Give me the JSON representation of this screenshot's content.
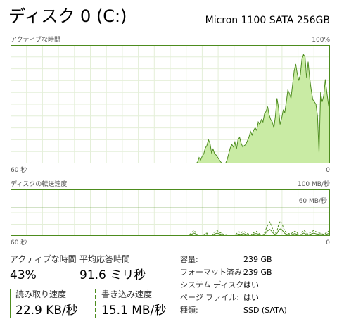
{
  "header": {
    "title": "ディスク 0 (C:)",
    "model": "Micron 1100 SATA 256GB"
  },
  "active_time_graph": {
    "label": "アクティブな時間",
    "max_label": "100%",
    "time_label": "60 秒",
    "min_label": "0",
    "values": [
      0,
      0,
      0,
      0,
      0,
      0,
      0,
      0,
      0,
      0,
      0,
      0,
      0,
      0,
      0,
      0,
      0,
      0,
      0,
      0,
      0,
      0,
      0,
      0,
      0,
      0,
      0,
      0,
      0,
      0,
      0,
      0,
      0,
      0,
      0,
      0,
      0,
      0,
      0,
      0,
      0,
      0,
      0,
      0,
      0,
      0,
      0,
      0,
      0,
      0,
      0,
      0,
      0,
      0,
      0,
      0,
      0,
      0,
      0,
      0,
      0,
      0,
      0,
      0,
      0,
      0,
      0,
      0,
      0,
      0,
      0,
      0,
      0,
      0,
      0,
      0,
      0,
      0,
      0,
      0,
      0,
      0,
      0,
      0,
      0,
      0,
      0,
      0,
      0,
      0,
      0,
      0,
      0,
      0,
      0,
      0,
      0,
      0,
      0,
      0,
      0,
      0,
      0,
      0,
      0,
      0,
      0,
      0,
      0,
      0,
      0,
      0,
      0,
      0,
      0,
      0,
      0,
      0,
      0,
      0,
      1,
      5,
      3,
      6,
      8,
      13,
      15,
      20,
      17,
      9,
      12,
      8,
      7,
      5,
      3,
      1,
      0,
      0,
      0,
      3,
      8,
      13,
      16,
      14,
      18,
      12,
      20,
      22,
      17,
      14,
      15,
      16,
      19,
      22,
      27,
      24,
      28,
      30,
      28,
      35,
      33,
      37,
      35,
      42,
      44,
      48,
      41,
      37,
      35,
      30,
      40,
      55,
      47,
      33,
      38,
      45,
      43,
      52,
      62,
      59,
      55,
      66,
      78,
      84,
      76,
      70,
      75,
      88,
      92,
      90,
      72,
      86,
      72,
      62,
      54,
      52,
      50,
      40,
      9,
      60,
      52,
      57,
      71,
      60,
      50,
      43
    ]
  },
  "transfer_graph": {
    "label": "ディスクの転送速度",
    "max_label": "100 MB/秒",
    "ref_label": "60 MB/秒",
    "ref_value": 60,
    "max_value": 100,
    "time_label": "60 秒",
    "min_label": "0",
    "read_values": [
      0,
      0,
      0,
      0,
      0,
      0,
      0,
      0,
      0,
      0,
      0,
      0,
      0,
      0,
      0,
      0,
      0,
      0,
      0,
      0,
      0,
      0,
      0,
      0,
      0,
      0,
      0,
      0,
      0,
      0,
      0,
      0,
      0,
      0,
      0,
      0,
      0,
      0,
      0,
      0,
      0,
      0,
      0,
      0,
      0,
      0,
      0,
      0,
      0,
      0,
      0,
      0,
      0,
      0,
      0,
      0,
      0,
      0,
      0,
      0,
      0,
      0,
      0,
      0,
      0,
      0,
      0,
      0,
      0,
      0,
      0,
      0,
      0,
      0,
      0,
      0,
      0,
      0,
      0,
      0,
      0,
      0,
      0,
      0,
      0,
      0,
      0,
      0,
      0,
      0,
      0,
      0,
      0,
      0,
      0,
      0,
      0,
      0,
      0,
      0,
      0,
      0,
      0,
      0,
      0,
      0,
      0,
      0,
      0,
      0,
      0,
      0,
      0,
      0,
      0,
      0,
      0,
      0,
      0,
      0,
      0,
      2,
      3,
      5,
      8,
      12,
      9,
      4,
      2,
      1,
      0,
      0,
      3,
      5,
      6,
      2,
      1,
      0,
      4,
      8,
      10,
      12,
      9,
      7,
      6,
      4,
      2,
      3,
      2,
      1,
      0,
      0,
      1,
      2,
      4,
      7,
      9,
      6,
      8,
      10,
      8,
      6,
      5,
      3,
      2,
      5,
      7,
      9,
      10,
      7,
      4,
      3,
      2,
      5,
      12,
      20,
      25,
      30,
      22,
      14,
      8,
      6,
      12,
      25,
      32,
      28,
      20,
      12,
      8,
      6,
      5,
      4,
      6,
      8,
      10,
      9,
      5,
      3,
      2,
      8,
      12,
      10,
      6,
      4,
      6,
      8,
      10,
      12,
      10,
      8,
      7,
      6,
      5,
      4,
      3,
      6,
      8,
      10,
      8
    ],
    "write_values": [
      0,
      0,
      0,
      0,
      0,
      0,
      0,
      0,
      0,
      0,
      0,
      0,
      0,
      0,
      0,
      0,
      0,
      0,
      0,
      0,
      0,
      0,
      0,
      0,
      0,
      0,
      0,
      0,
      0,
      0,
      0,
      0,
      0,
      0,
      0,
      0,
      0,
      0,
      0,
      0,
      0,
      0,
      0,
      0,
      0,
      0,
      0,
      0,
      0,
      0,
      0,
      0,
      0,
      0,
      0,
      0,
      0,
      0,
      0,
      0,
      0,
      0,
      0,
      0,
      0,
      0,
      0,
      0,
      0,
      0,
      0,
      0,
      0,
      0,
      0,
      0,
      0,
      0,
      0,
      0,
      0,
      0,
      0,
      0,
      0,
      0,
      0,
      0,
      0,
      0,
      0,
      0,
      0,
      0,
      0,
      0,
      0,
      0,
      0,
      0,
      0,
      0,
      0,
      0,
      0,
      0,
      0,
      0,
      0,
      0,
      0,
      0,
      0,
      0,
      0,
      0,
      0,
      0,
      0,
      0,
      0,
      1,
      2,
      3,
      4,
      6,
      5,
      3,
      2,
      1,
      0,
      0,
      1,
      2,
      3,
      2,
      1,
      0,
      2,
      4,
      5,
      6,
      5,
      4,
      3,
      2,
      1,
      2,
      1,
      1,
      0,
      0,
      1,
      1,
      2,
      3,
      4,
      3,
      4,
      5,
      4,
      3,
      3,
      2,
      1,
      3,
      4,
      5,
      5,
      4,
      2,
      2,
      1,
      3,
      6,
      10,
      12,
      14,
      11,
      7,
      4,
      3,
      6,
      12,
      15,
      14,
      10,
      6,
      4,
      3,
      3,
      2,
      3,
      4,
      5,
      4,
      3,
      2,
      1,
      4,
      6,
      5,
      3,
      2,
      3,
      4,
      5,
      6,
      5,
      4,
      4,
      3,
      3,
      2,
      2,
      3,
      4,
      5,
      4
    ]
  },
  "stats": {
    "active_time_label": "アクティブな時間",
    "active_time_value": "43%",
    "avg_response_label": "平均応答時間",
    "avg_response_value": "91.6 ミリ秒",
    "read_speed_label": "読み取り速度",
    "read_speed_value": "22.9 KB/秒",
    "write_speed_label": "書き込み速度",
    "write_speed_value": "15.1 MB/秒"
  },
  "info": [
    {
      "key": "容量:",
      "value": "239 GB"
    },
    {
      "key": "フォーマット済み:",
      "value": "239 GB"
    },
    {
      "key": "システム ディスク:",
      "value": "はい"
    },
    {
      "key": "ページ ファイル:",
      "value": "はい"
    },
    {
      "key": "種類:",
      "value": "SSD (SATA)"
    }
  ],
  "colors": {
    "border": "#4d8c1e",
    "grid": "#e4efd8",
    "fill": "#c9eba4",
    "line": "#4d8c1e"
  }
}
